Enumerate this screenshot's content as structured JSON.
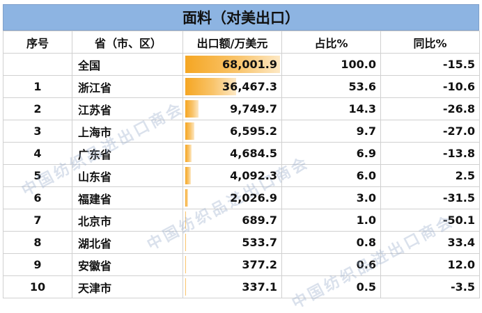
{
  "title": "面料（对美出口）",
  "headers": {
    "rank": "序号",
    "province": "省（市、区）",
    "export": "出口额/万美元",
    "share": "占比%",
    "yoy": "同比%"
  },
  "rows": [
    {
      "rank": "",
      "province": "全国",
      "export": "68,001.9",
      "export_value": 68001.9,
      "share": "100.0",
      "yoy": "-15.5"
    },
    {
      "rank": "1",
      "province": "浙江省",
      "export": "36,467.3",
      "export_value": 36467.3,
      "share": "53.6",
      "yoy": "-10.6"
    },
    {
      "rank": "2",
      "province": "江苏省",
      "export": "9,749.7",
      "export_value": 9749.7,
      "share": "14.3",
      "yoy": "-26.8"
    },
    {
      "rank": "3",
      "province": "上海市",
      "export": "6,595.2",
      "export_value": 6595.2,
      "share": "9.7",
      "yoy": "-27.0"
    },
    {
      "rank": "4",
      "province": "广东省",
      "export": "4,684.5",
      "export_value": 4684.5,
      "share": "6.9",
      "yoy": "-13.8"
    },
    {
      "rank": "5",
      "province": "山东省",
      "export": "4,092.3",
      "export_value": 4092.3,
      "share": "6.0",
      "yoy": "2.5"
    },
    {
      "rank": "6",
      "province": "福建省",
      "export": "2,026.9",
      "export_value": 2026.9,
      "share": "3.0",
      "yoy": "-31.5"
    },
    {
      "rank": "7",
      "province": "北京市",
      "export": "689.7",
      "export_value": 689.7,
      "share": "1.0",
      "yoy": "-50.1"
    },
    {
      "rank": "8",
      "province": "湖北省",
      "export": "533.7",
      "export_value": 533.7,
      "share": "0.8",
      "yoy": "33.4"
    },
    {
      "rank": "9",
      "province": "安徽省",
      "export": "377.2",
      "export_value": 377.2,
      "share": "0.6",
      "yoy": "12.0"
    },
    {
      "rank": "10",
      "province": "天津市",
      "export": "337.1",
      "export_value": 337.1,
      "share": "0.5",
      "yoy": "-3.5"
    }
  ],
  "watermark": "中国纺织品进出口商会",
  "colors": {
    "title_bg": "#8db4e2",
    "bar": "#f5a623"
  }
}
